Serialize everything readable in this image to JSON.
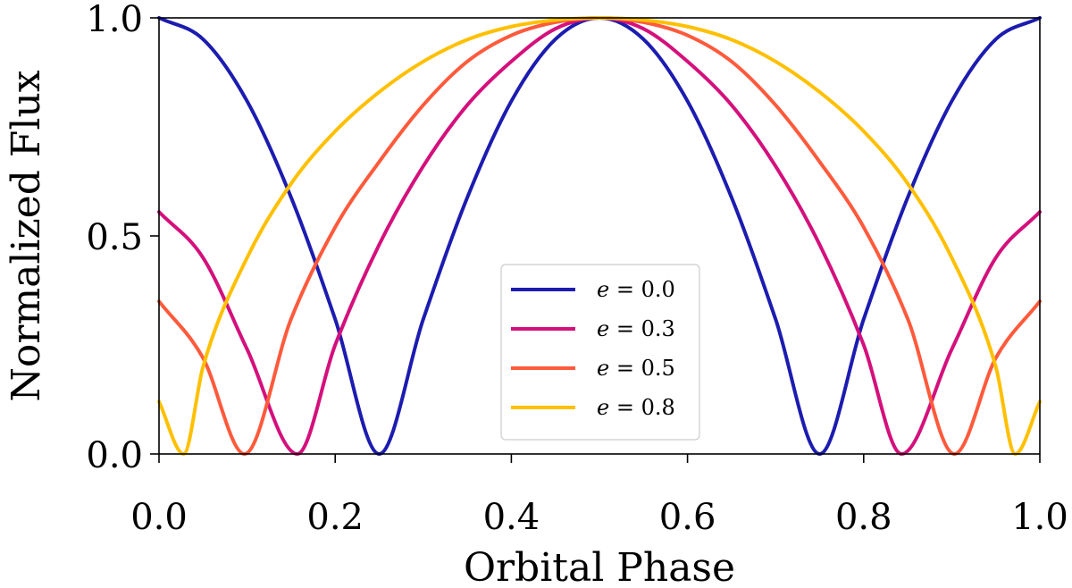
{
  "chart_data": {
    "type": "line",
    "title": "",
    "xlabel": "Orbital Phase",
    "ylabel": "Normalized Flux",
    "xlim": [
      0.0,
      1.0
    ],
    "ylim": [
      0.0,
      1.0
    ],
    "xticks": [
      "0.0",
      "0.2",
      "0.4",
      "0.6",
      "0.8",
      "1.0"
    ],
    "yticks": [
      "0.0",
      "0.5",
      "1.0"
    ],
    "grid": false,
    "legend_position": "lower-center",
    "series": [
      {
        "name": "e = 0.0",
        "legend_var": "e",
        "legend_value": "0.0",
        "color": "#1c1cb0",
        "x": [
          0.0,
          0.05,
          0.1,
          0.15,
          0.2,
          0.25,
          0.3,
          0.35,
          0.4,
          0.45,
          0.5,
          0.55,
          0.6,
          0.65,
          0.7,
          0.75,
          0.8,
          0.85,
          0.9,
          0.95,
          1.0
        ],
        "y": [
          1.0,
          0.951,
          0.809,
          0.588,
          0.309,
          0.0,
          0.309,
          0.588,
          0.809,
          0.951,
          1.0,
          0.951,
          0.809,
          0.588,
          0.309,
          0.0,
          0.309,
          0.588,
          0.809,
          0.951,
          1.0
        ]
      },
      {
        "name": "e = 0.3",
        "legend_var": "e",
        "legend_value": "0.3",
        "color": "#d4107c",
        "x": [
          0.0,
          0.05,
          0.1,
          0.157,
          0.2,
          0.25,
          0.3,
          0.35,
          0.4,
          0.45,
          0.5,
          0.55,
          0.6,
          0.65,
          0.7,
          0.75,
          0.8,
          0.843,
          0.9,
          0.95,
          1.0
        ],
        "y": [
          0.555,
          0.45,
          0.24,
          0.0,
          0.25,
          0.48,
          0.66,
          0.8,
          0.9,
          0.975,
          1.0,
          0.975,
          0.9,
          0.8,
          0.66,
          0.48,
          0.25,
          0.0,
          0.24,
          0.45,
          0.555
        ]
      },
      {
        "name": "e = 0.5",
        "legend_var": "e",
        "legend_value": "0.5",
        "color": "#ff5a3c",
        "x": [
          0.0,
          0.05,
          0.097,
          0.15,
          0.2,
          0.25,
          0.3,
          0.35,
          0.4,
          0.45,
          0.5,
          0.55,
          0.6,
          0.65,
          0.7,
          0.75,
          0.8,
          0.85,
          0.903,
          0.95,
          1.0
        ],
        "y": [
          0.35,
          0.22,
          0.0,
          0.31,
          0.52,
          0.67,
          0.8,
          0.9,
          0.96,
          0.99,
          1.0,
          0.99,
          0.96,
          0.9,
          0.8,
          0.67,
          0.52,
          0.31,
          0.0,
          0.22,
          0.35
        ]
      },
      {
        "name": "e = 0.8",
        "legend_var": "e",
        "legend_value": "0.8",
        "color": "#ffc000",
        "x": [
          0.0,
          0.028,
          0.05,
          0.1,
          0.15,
          0.2,
          0.25,
          0.3,
          0.35,
          0.4,
          0.45,
          0.5,
          0.55,
          0.6,
          0.65,
          0.7,
          0.75,
          0.8,
          0.85,
          0.9,
          0.95,
          0.972,
          1.0
        ],
        "y": [
          0.12,
          0.0,
          0.2,
          0.45,
          0.62,
          0.74,
          0.83,
          0.9,
          0.95,
          0.98,
          0.995,
          1.0,
          0.995,
          0.98,
          0.95,
          0.9,
          0.83,
          0.74,
          0.62,
          0.45,
          0.2,
          0.0,
          0.12
        ]
      }
    ]
  }
}
